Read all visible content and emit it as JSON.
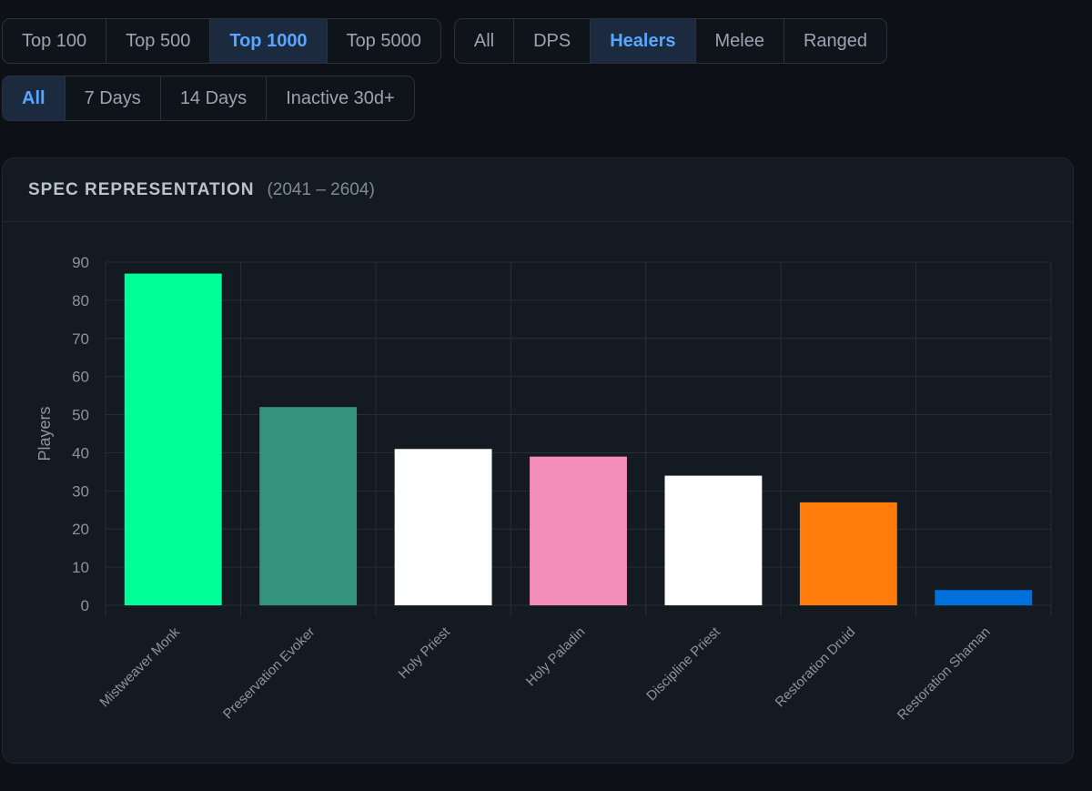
{
  "filters": {
    "rank_tabs": [
      {
        "label": "Top 100",
        "active": false
      },
      {
        "label": "Top 500",
        "active": false
      },
      {
        "label": "Top 1000",
        "active": true
      },
      {
        "label": "Top 5000",
        "active": false
      }
    ],
    "role_tabs": [
      {
        "label": "All",
        "active": false
      },
      {
        "label": "DPS",
        "active": false
      },
      {
        "label": "Healers",
        "active": true
      },
      {
        "label": "Melee",
        "active": false
      },
      {
        "label": "Ranged",
        "active": false
      }
    ],
    "activity_tabs": [
      {
        "label": "All",
        "active": true
      },
      {
        "label": "7 Days",
        "active": false
      },
      {
        "label": "14 Days",
        "active": false
      },
      {
        "label": "Inactive 30d+",
        "active": false
      }
    ]
  },
  "panel": {
    "title": "SPEC REPRESENTATION",
    "range": "(2041 – 2604)"
  },
  "colors": {
    "accent": "#58a6ff",
    "background": "#0d1117",
    "panel": "#131a22"
  },
  "chart_data": {
    "type": "bar",
    "categories": [
      "Mistweaver Monk",
      "Preservation Evoker",
      "Holy Priest",
      "Holy Paladin",
      "Discipline Priest",
      "Restoration Druid",
      "Restoration Shaman"
    ],
    "values": [
      87,
      52,
      41,
      39,
      34,
      27,
      4
    ],
    "colors": [
      "#00ff98",
      "#33937f",
      "#ffffff",
      "#f48cba",
      "#ffffff",
      "#ff7c0a",
      "#0070dd"
    ],
    "xlabel": "",
    "ylabel": "Players",
    "ylim": [
      0,
      90
    ],
    "yticks": [
      0,
      10,
      20,
      30,
      40,
      50,
      60,
      70,
      80,
      90
    ],
    "grid": true
  }
}
